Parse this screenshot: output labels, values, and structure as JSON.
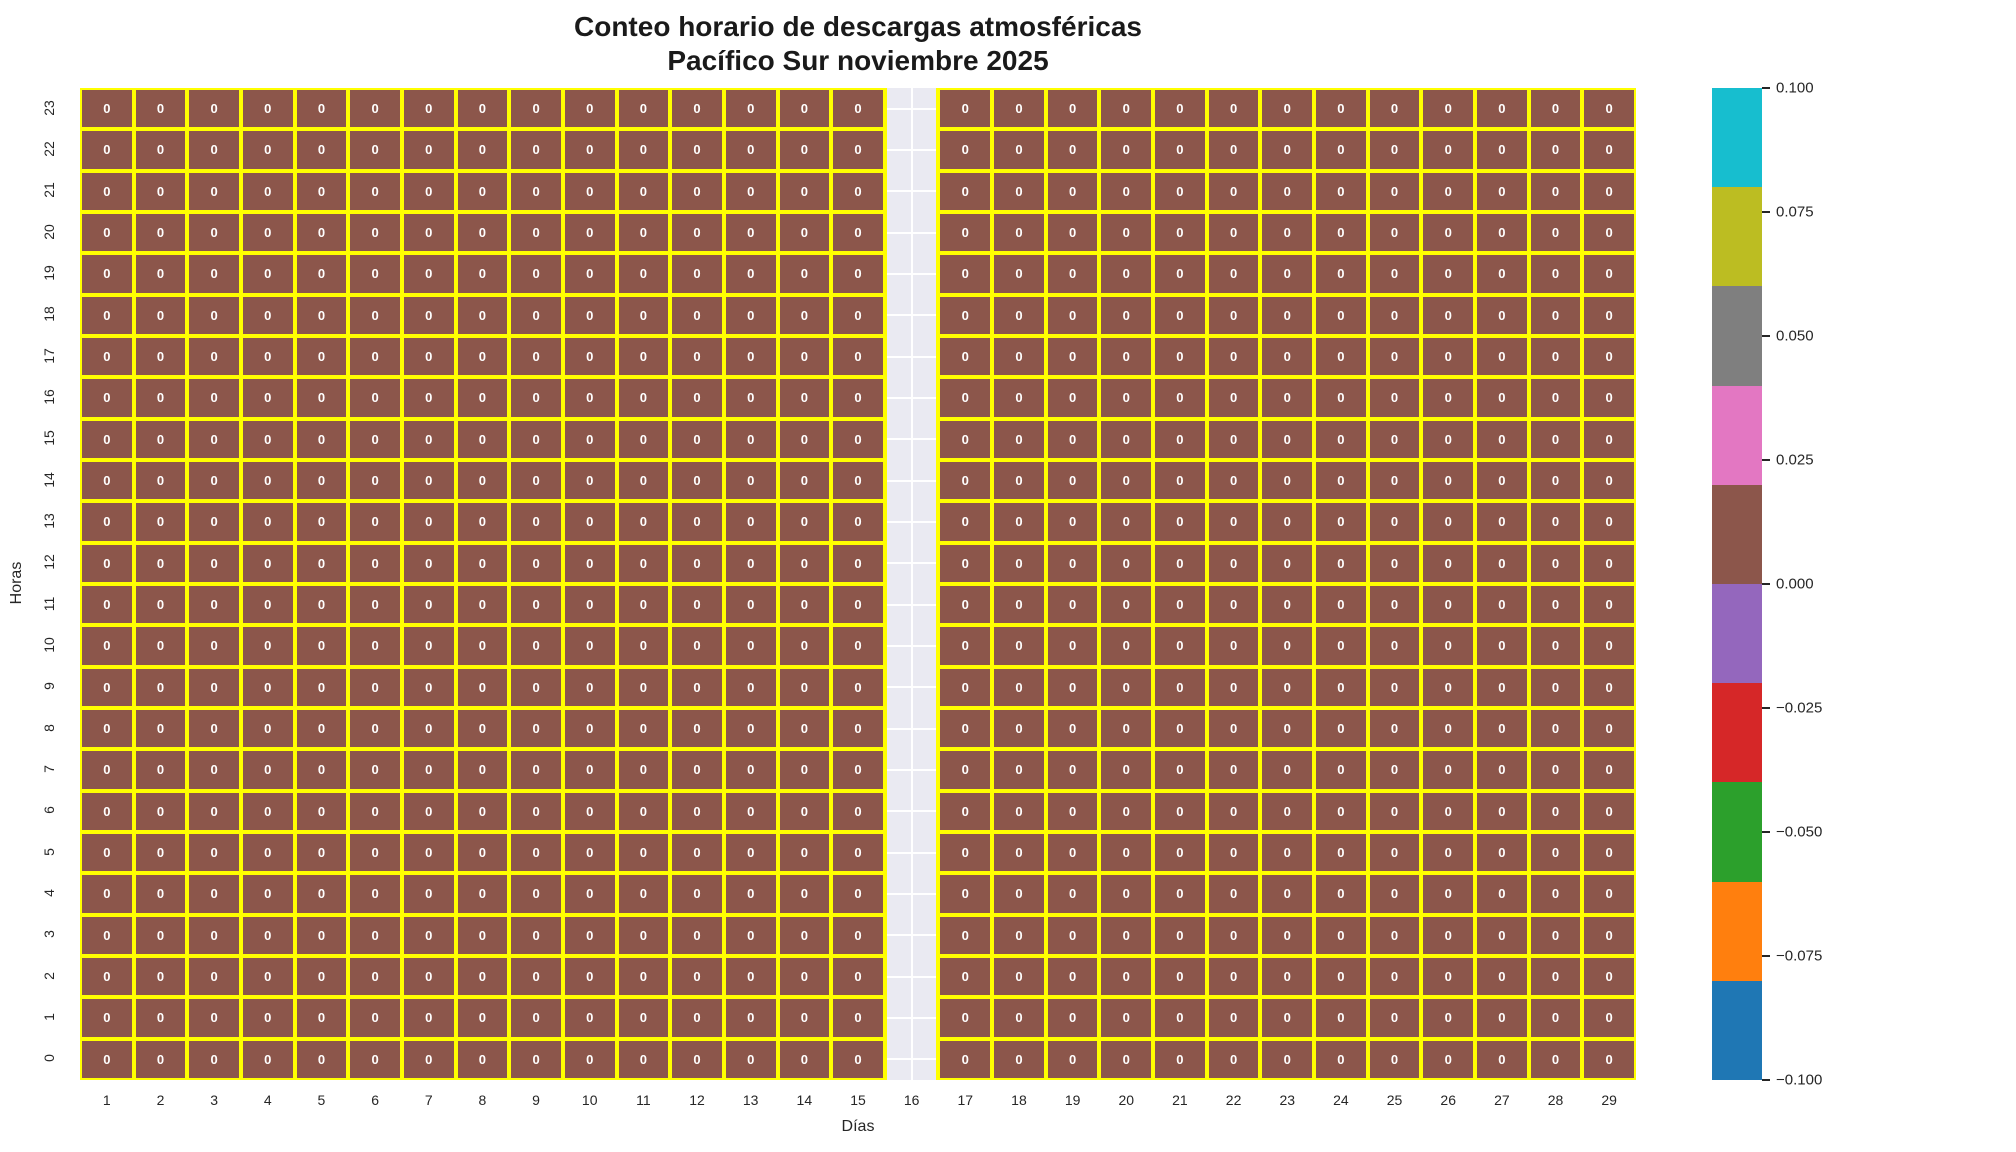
{
  "title": {
    "line1": "Conteo horario de descargas atmosféricas",
    "line2": "Pacífico Sur noviembre 2025"
  },
  "axes": {
    "xlabel": "Días",
    "ylabel": "Horas"
  },
  "chart_data": {
    "type": "heatmap",
    "title": "Conteo horario de descargas atmosféricas — Pacífico Sur noviembre 2025",
    "xlabel": "Días",
    "ylabel": "Horas",
    "days": [
      1,
      2,
      3,
      4,
      5,
      6,
      7,
      8,
      9,
      10,
      11,
      12,
      13,
      14,
      15,
      16,
      17,
      18,
      19,
      20,
      21,
      22,
      23,
      24,
      25,
      26,
      27,
      28,
      29
    ],
    "hours_top_to_bottom": [
      23,
      22,
      21,
      20,
      19,
      18,
      17,
      16,
      15,
      14,
      13,
      12,
      11,
      10,
      9,
      8,
      7,
      6,
      5,
      4,
      3,
      2,
      1,
      0
    ],
    "cell_value": 0,
    "missing_data_days": [
      16
    ],
    "cell_color": "#8c564b",
    "missing_color": "#eaeaf2",
    "grid_color": "#ffff00",
    "annotation_color": "#ffffff",
    "colorbar": {
      "colors_top_to_bottom": [
        "#17becf",
        "#bcbd22",
        "#7f7f7f",
        "#e377c2",
        "#8c564b",
        "#9467bd",
        "#d62728",
        "#2ca02c",
        "#ff7f0e",
        "#1f77b4"
      ],
      "tick_labels_top_to_bottom": [
        "0.100",
        "0.075",
        "0.050",
        "0.025",
        "0.000",
        "−0.025",
        "−0.050",
        "−0.075",
        "−0.100"
      ],
      "vmin": -0.1,
      "vmax": 0.1
    }
  }
}
